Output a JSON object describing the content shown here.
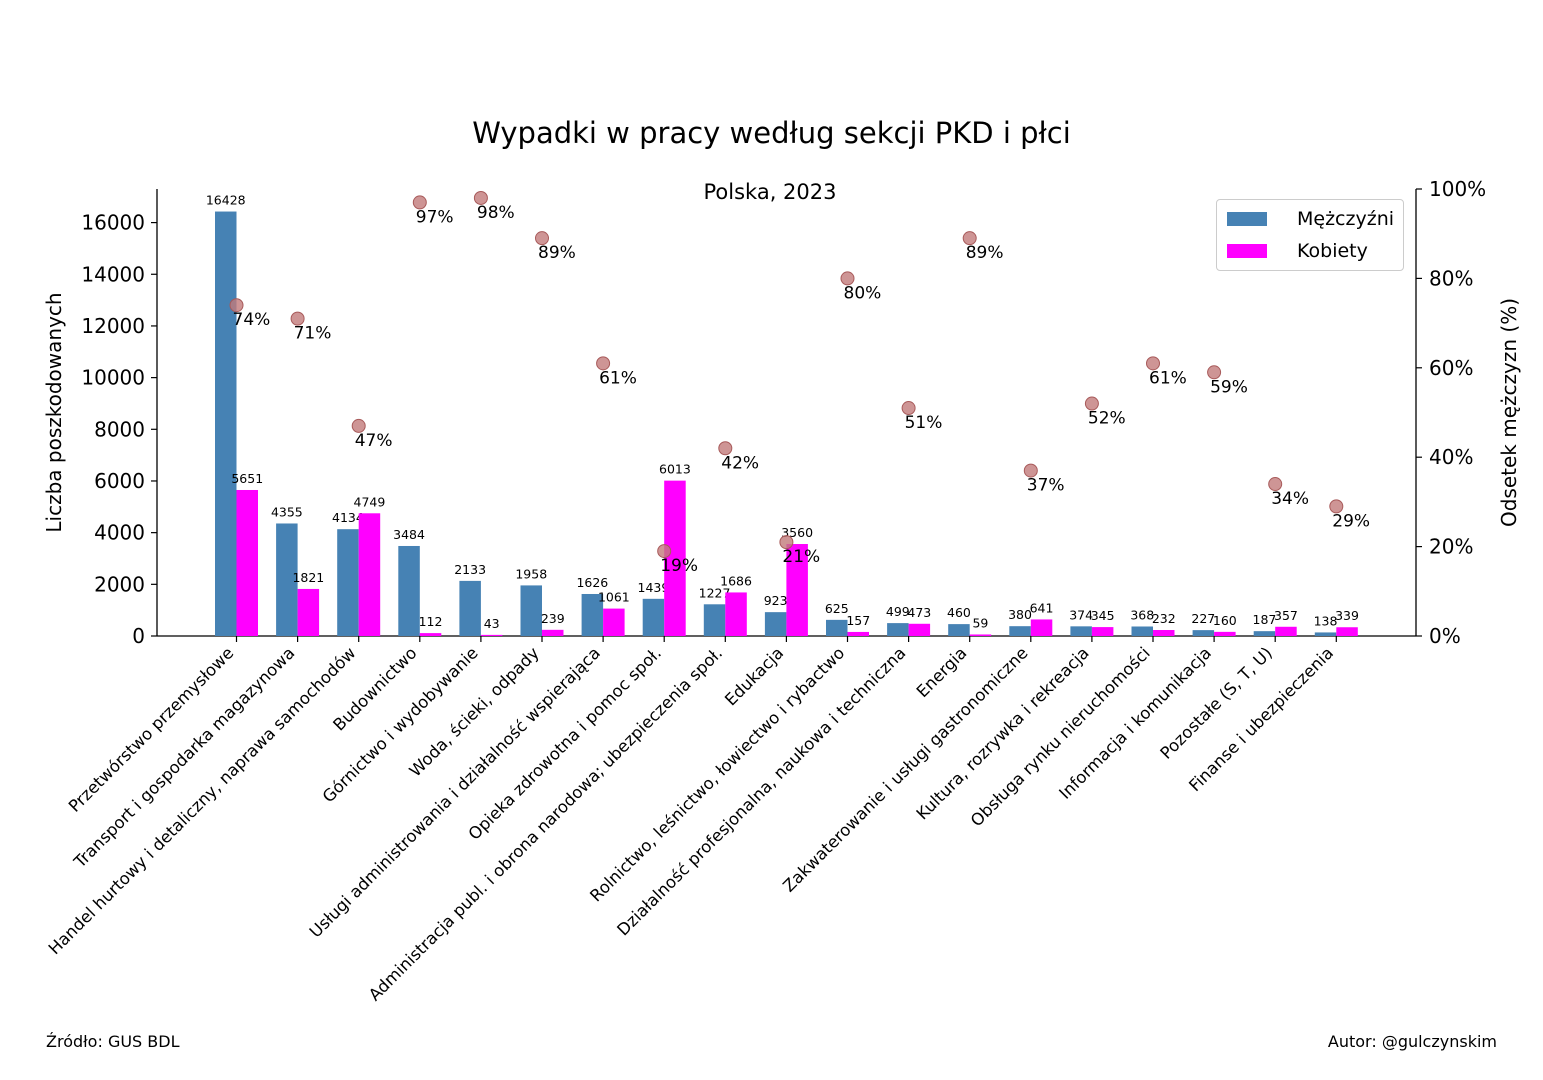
{
  "title": "Wypadki w pracy według sekcji PKD i płci",
  "subtitle": "Polska, 2023",
  "footer": {
    "source": "Źródło: GUS BDL",
    "author": "Autor: @gulczynskim"
  },
  "legend": [
    {
      "label": "Mężczyźni",
      "color": "#4682b4"
    },
    {
      "label": "Kobiety",
      "color": "#ff00ff"
    }
  ],
  "chart_data": {
    "type": "bar",
    "title": "Wypadki w pracy według sekcji PKD i płci",
    "subtitle": "Polska, 2023",
    "ylabel": "Liczba poszkodowanych",
    "y2label": "Odsetek mężczyzn (%)",
    "ylim": [
      0,
      17300
    ],
    "y2lim": [
      0,
      100
    ],
    "yticks": [
      0,
      2000,
      4000,
      6000,
      8000,
      10000,
      12000,
      14000,
      16000
    ],
    "y2ticks": [
      "0%",
      "20%",
      "40%",
      "60%",
      "80%",
      "100%"
    ],
    "legend_position": "top-right",
    "grid": false,
    "categories": [
      "Przetwórstwo przemysłowe",
      "Transport i gospodarka magazynowa",
      "Handel hurtowy i detaliczny, naprawa samochodów",
      "Budownictwo",
      "Górnictwo i wydobywanie",
      "Woda, ścieki, odpady",
      "Usługi administrowania i działalność wspierająca",
      "Opieka zdrowotna i pomoc społ.",
      "Administracja publ. i obrona narodowa; ubezpieczenia społ.",
      "Edukacja",
      "Rolnictwo, leśnictwo, łowiectwo i rybactwo",
      "Działalność profesjonalna, naukowa i techniczna",
      "Energia",
      "Zakwaterowanie i usługi gastronomiczne",
      "Kultura, rozrywka i rekreacja",
      "Obsługa rynku nieruchomości",
      "Informacja i komunikacja",
      "Pozostałe (S, T, U)",
      "Finanse i ubezpieczenia"
    ],
    "series": [
      {
        "name": "Mężczyźni",
        "color": "#4682b4",
        "values": [
          16428,
          4355,
          4134,
          3484,
          2133,
          1958,
          1626,
          1439,
          1227,
          923,
          625,
          499,
          460,
          380,
          374,
          368,
          227,
          187,
          138
        ]
      },
      {
        "name": "Kobiety",
        "color": "#ff00ff",
        "values": [
          5651,
          1821,
          4749,
          112,
          43,
          239,
          1061,
          6013,
          1686,
          3560,
          157,
          473,
          59,
          641,
          345,
          232,
          160,
          357,
          339
        ]
      }
    ],
    "male_share": {
      "color": "#c27b7b",
      "values": [
        74,
        71,
        47,
        97,
        98,
        89,
        61,
        19,
        42,
        21,
        80,
        51,
        89,
        37,
        52,
        61,
        59,
        34,
        29
      ],
      "labels": [
        "74%",
        "71%",
        "47%",
        "97%",
        "98%",
        "89%",
        "61%",
        "19%",
        "42%",
        "21%",
        "80%",
        "51%",
        "89%",
        "37%",
        "52%",
        "61%",
        "59%",
        "34%",
        "29%"
      ]
    }
  }
}
